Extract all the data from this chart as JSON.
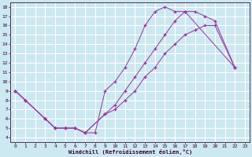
{
  "bg_color": "#cce8f0",
  "grid_color": "#ffffff",
  "line_color": "#993399",
  "xlim": [
    -0.5,
    23.5
  ],
  "ylim": [
    3.5,
    18.5
  ],
  "xticks": [
    0,
    1,
    2,
    3,
    4,
    5,
    6,
    7,
    8,
    9,
    10,
    11,
    12,
    13,
    14,
    15,
    16,
    17,
    18,
    19,
    20,
    21,
    22,
    23
  ],
  "yticks": [
    4,
    5,
    6,
    7,
    8,
    9,
    10,
    11,
    12,
    13,
    14,
    15,
    16,
    17,
    18
  ],
  "xlabel": "Windchill (Refroidissement éolien,°C)",
  "line1_x": [
    0,
    1,
    3,
    4,
    5,
    6,
    7,
    8,
    9,
    10,
    11,
    12,
    13,
    14,
    15,
    16,
    17,
    22
  ],
  "line1_y": [
    9,
    8,
    6,
    5,
    5,
    5,
    4.5,
    4.5,
    9,
    10,
    11.5,
    13.5,
    16,
    17.5,
    18,
    17.5,
    17.5,
    11.5
  ],
  "line2_x": [
    0,
    1,
    3,
    4,
    5,
    6,
    7,
    9,
    10,
    11,
    12,
    13,
    14,
    15,
    16,
    17,
    18,
    19,
    20,
    22
  ],
  "line2_y": [
    9,
    8,
    6,
    5,
    5,
    5,
    4.5,
    6.5,
    7.5,
    9,
    10.5,
    12,
    13.5,
    15,
    16.5,
    17.5,
    17.5,
    17,
    16.5,
    11.5
  ],
  "line3_x": [
    0,
    1,
    3,
    4,
    5,
    6,
    7,
    9,
    10,
    11,
    12,
    13,
    14,
    15,
    16,
    17,
    18,
    19,
    20,
    22
  ],
  "line3_y": [
    9,
    8,
    6,
    5,
    5,
    5,
    4.5,
    6.5,
    7,
    8,
    9,
    10.5,
    11.5,
    13,
    14,
    15,
    15.5,
    16,
    16,
    11.5
  ]
}
